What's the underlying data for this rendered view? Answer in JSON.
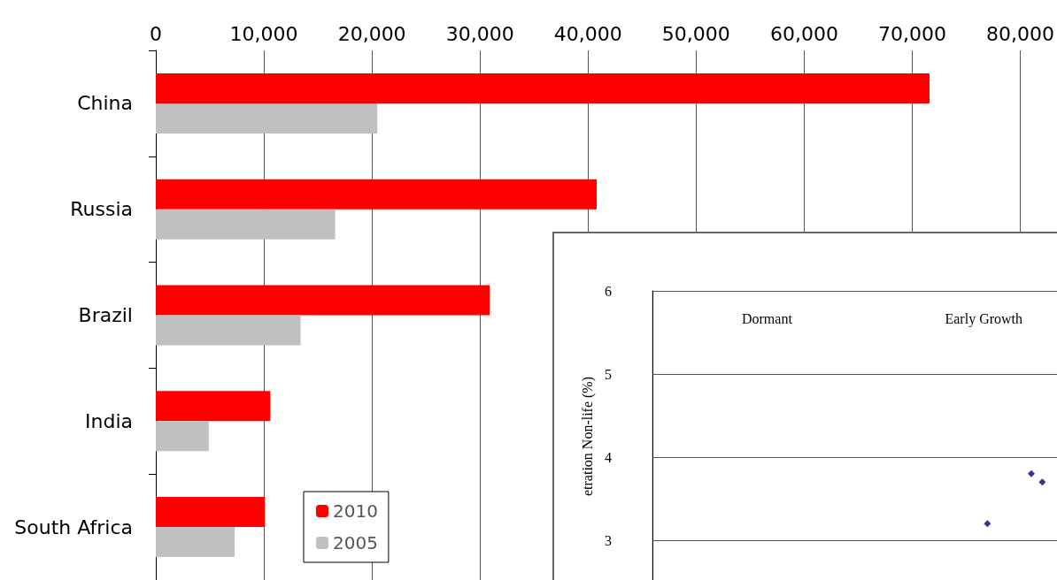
{
  "chart_data": [
    {
      "type": "bar",
      "orientation": "horizontal",
      "categories": [
        "China",
        "Russia",
        "Brazil",
        "India",
        "South Africa"
      ],
      "series": [
        {
          "name": "2010",
          "color": "#ff0000",
          "values": [
            71600,
            40800,
            30900,
            10600,
            10100
          ]
        },
        {
          "name": "2005",
          "color": "#c0c0c0",
          "values": [
            20500,
            16600,
            13400,
            4900,
            7300
          ]
        }
      ],
      "xlim": [
        0,
        80000
      ],
      "xticks": [
        {
          "value": 0,
          "label": "0"
        },
        {
          "value": 10000,
          "label": "10,000"
        },
        {
          "value": 20000,
          "label": "20,000"
        },
        {
          "value": 30000,
          "label": "30,000"
        },
        {
          "value": 40000,
          "label": "40,000"
        },
        {
          "value": 50000,
          "label": "50,000"
        },
        {
          "value": 60000,
          "label": "60,000"
        },
        {
          "value": 70000,
          "label": "70,000"
        },
        {
          "value": 80000,
          "label": "80,000"
        }
      ],
      "grid": "x",
      "legend": "bottom"
    },
    {
      "type": "scatter",
      "ylabel": "etration Non-life (%)",
      "annotations": [
        "Dormant",
        "Early Growth"
      ],
      "categories": [
        null,
        null,
        null,
        null,
        null,
        null,
        null,
        null,
        null,
        null,
        null,
        null,
        null,
        null,
        null,
        null,
        null,
        null,
        null,
        null,
        null,
        null,
        null,
        null,
        null,
        null,
        null,
        null,
        null,
        null,
        null,
        null,
        null,
        null,
        null,
        null,
        null
      ],
      "values": [
        null,
        null,
        null,
        null,
        null,
        null,
        null,
        null,
        null,
        null,
        null,
        null,
        null,
        null,
        null,
        null,
        null,
        null,
        null,
        null,
        null,
        null,
        null,
        null,
        null,
        null,
        null,
        null,
        null,
        null,
        3.2,
        null,
        null,
        null,
        3.8,
        3.7,
        null
      ],
      "color": "#000080",
      "marker": "diamond",
      "ylim": [
        2.5,
        6
      ],
      "yticks": [
        3,
        4,
        5,
        6
      ],
      "tick_labels": "y",
      "grid": "y"
    }
  ]
}
